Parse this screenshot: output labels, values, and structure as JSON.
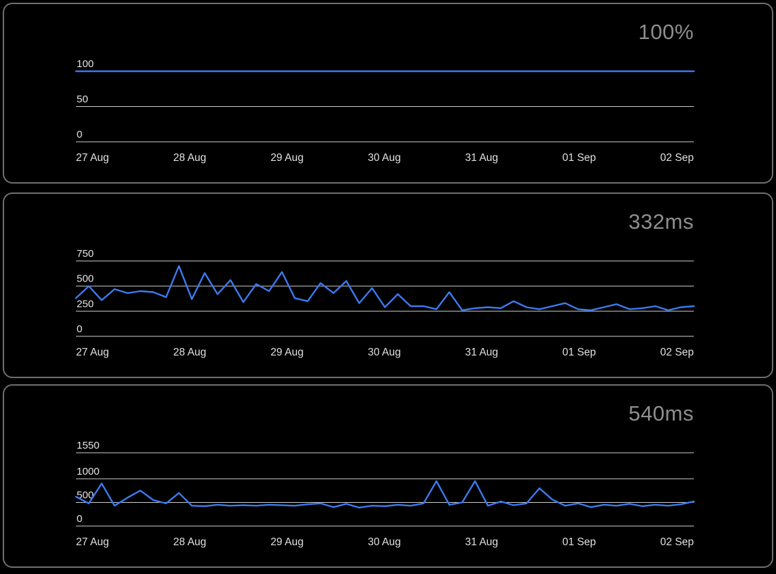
{
  "colors": {
    "accent": "#3b7bf0",
    "grid": "#cfcfcf",
    "tick_text": "#e4e4e4",
    "big_value": "#8e8e8e",
    "panel_border": "#6f6f6f",
    "background": "#000000"
  },
  "chart_data": [
    {
      "type": "line",
      "title": "100%",
      "ylabel": "",
      "xlabel": "",
      "ylim": [
        0,
        100
      ],
      "y_ticks": [
        100,
        50,
        0
      ],
      "x_tick_labels": [
        "27 Aug",
        "28 Aug",
        "29 Aug",
        "30 Aug",
        "31 Aug",
        "01 Sep",
        "02 Sep"
      ],
      "grid": true,
      "legend": "none",
      "values": [
        100,
        100,
        100,
        100,
        100,
        100,
        100,
        100
      ]
    },
    {
      "type": "line",
      "title": "332ms",
      "ylabel": "",
      "xlabel": "",
      "ylim": [
        0,
        750
      ],
      "y_ticks": [
        750,
        500,
        250,
        0
      ],
      "x_tick_labels": [
        "27 Aug",
        "28 Aug",
        "29 Aug",
        "30 Aug",
        "31 Aug",
        "01 Sep",
        "02 Sep"
      ],
      "grid": true,
      "legend": "none",
      "values": [
        380,
        500,
        360,
        470,
        430,
        450,
        440,
        390,
        700,
        370,
        630,
        420,
        560,
        340,
        520,
        450,
        640,
        380,
        350,
        530,
        430,
        550,
        330,
        480,
        290,
        420,
        300,
        300,
        270,
        440,
        260,
        280,
        290,
        280,
        350,
        290,
        270,
        300,
        330,
        270,
        260,
        290,
        320,
        270,
        280,
        300,
        260,
        290,
        300
      ]
    },
    {
      "type": "line",
      "title": "540ms",
      "ylabel": "",
      "xlabel": "",
      "ylim": [
        0,
        1550
      ],
      "y_ticks": [
        1550,
        1000,
        500,
        0
      ],
      "x_tick_labels": [
        "27 Aug",
        "28 Aug",
        "29 Aug",
        "30 Aug",
        "31 Aug",
        "01 Sep",
        "02 Sep"
      ],
      "grid": true,
      "legend": "none",
      "values": [
        620,
        480,
        900,
        430,
        600,
        750,
        550,
        480,
        700,
        430,
        420,
        450,
        430,
        440,
        430,
        450,
        440,
        430,
        460,
        480,
        400,
        470,
        390,
        430,
        420,
        450,
        430,
        480,
        950,
        450,
        500,
        950,
        430,
        520,
        440,
        480,
        800,
        560,
        430,
        480,
        400,
        450,
        430,
        470,
        420,
        450,
        430,
        460,
        520
      ]
    }
  ]
}
